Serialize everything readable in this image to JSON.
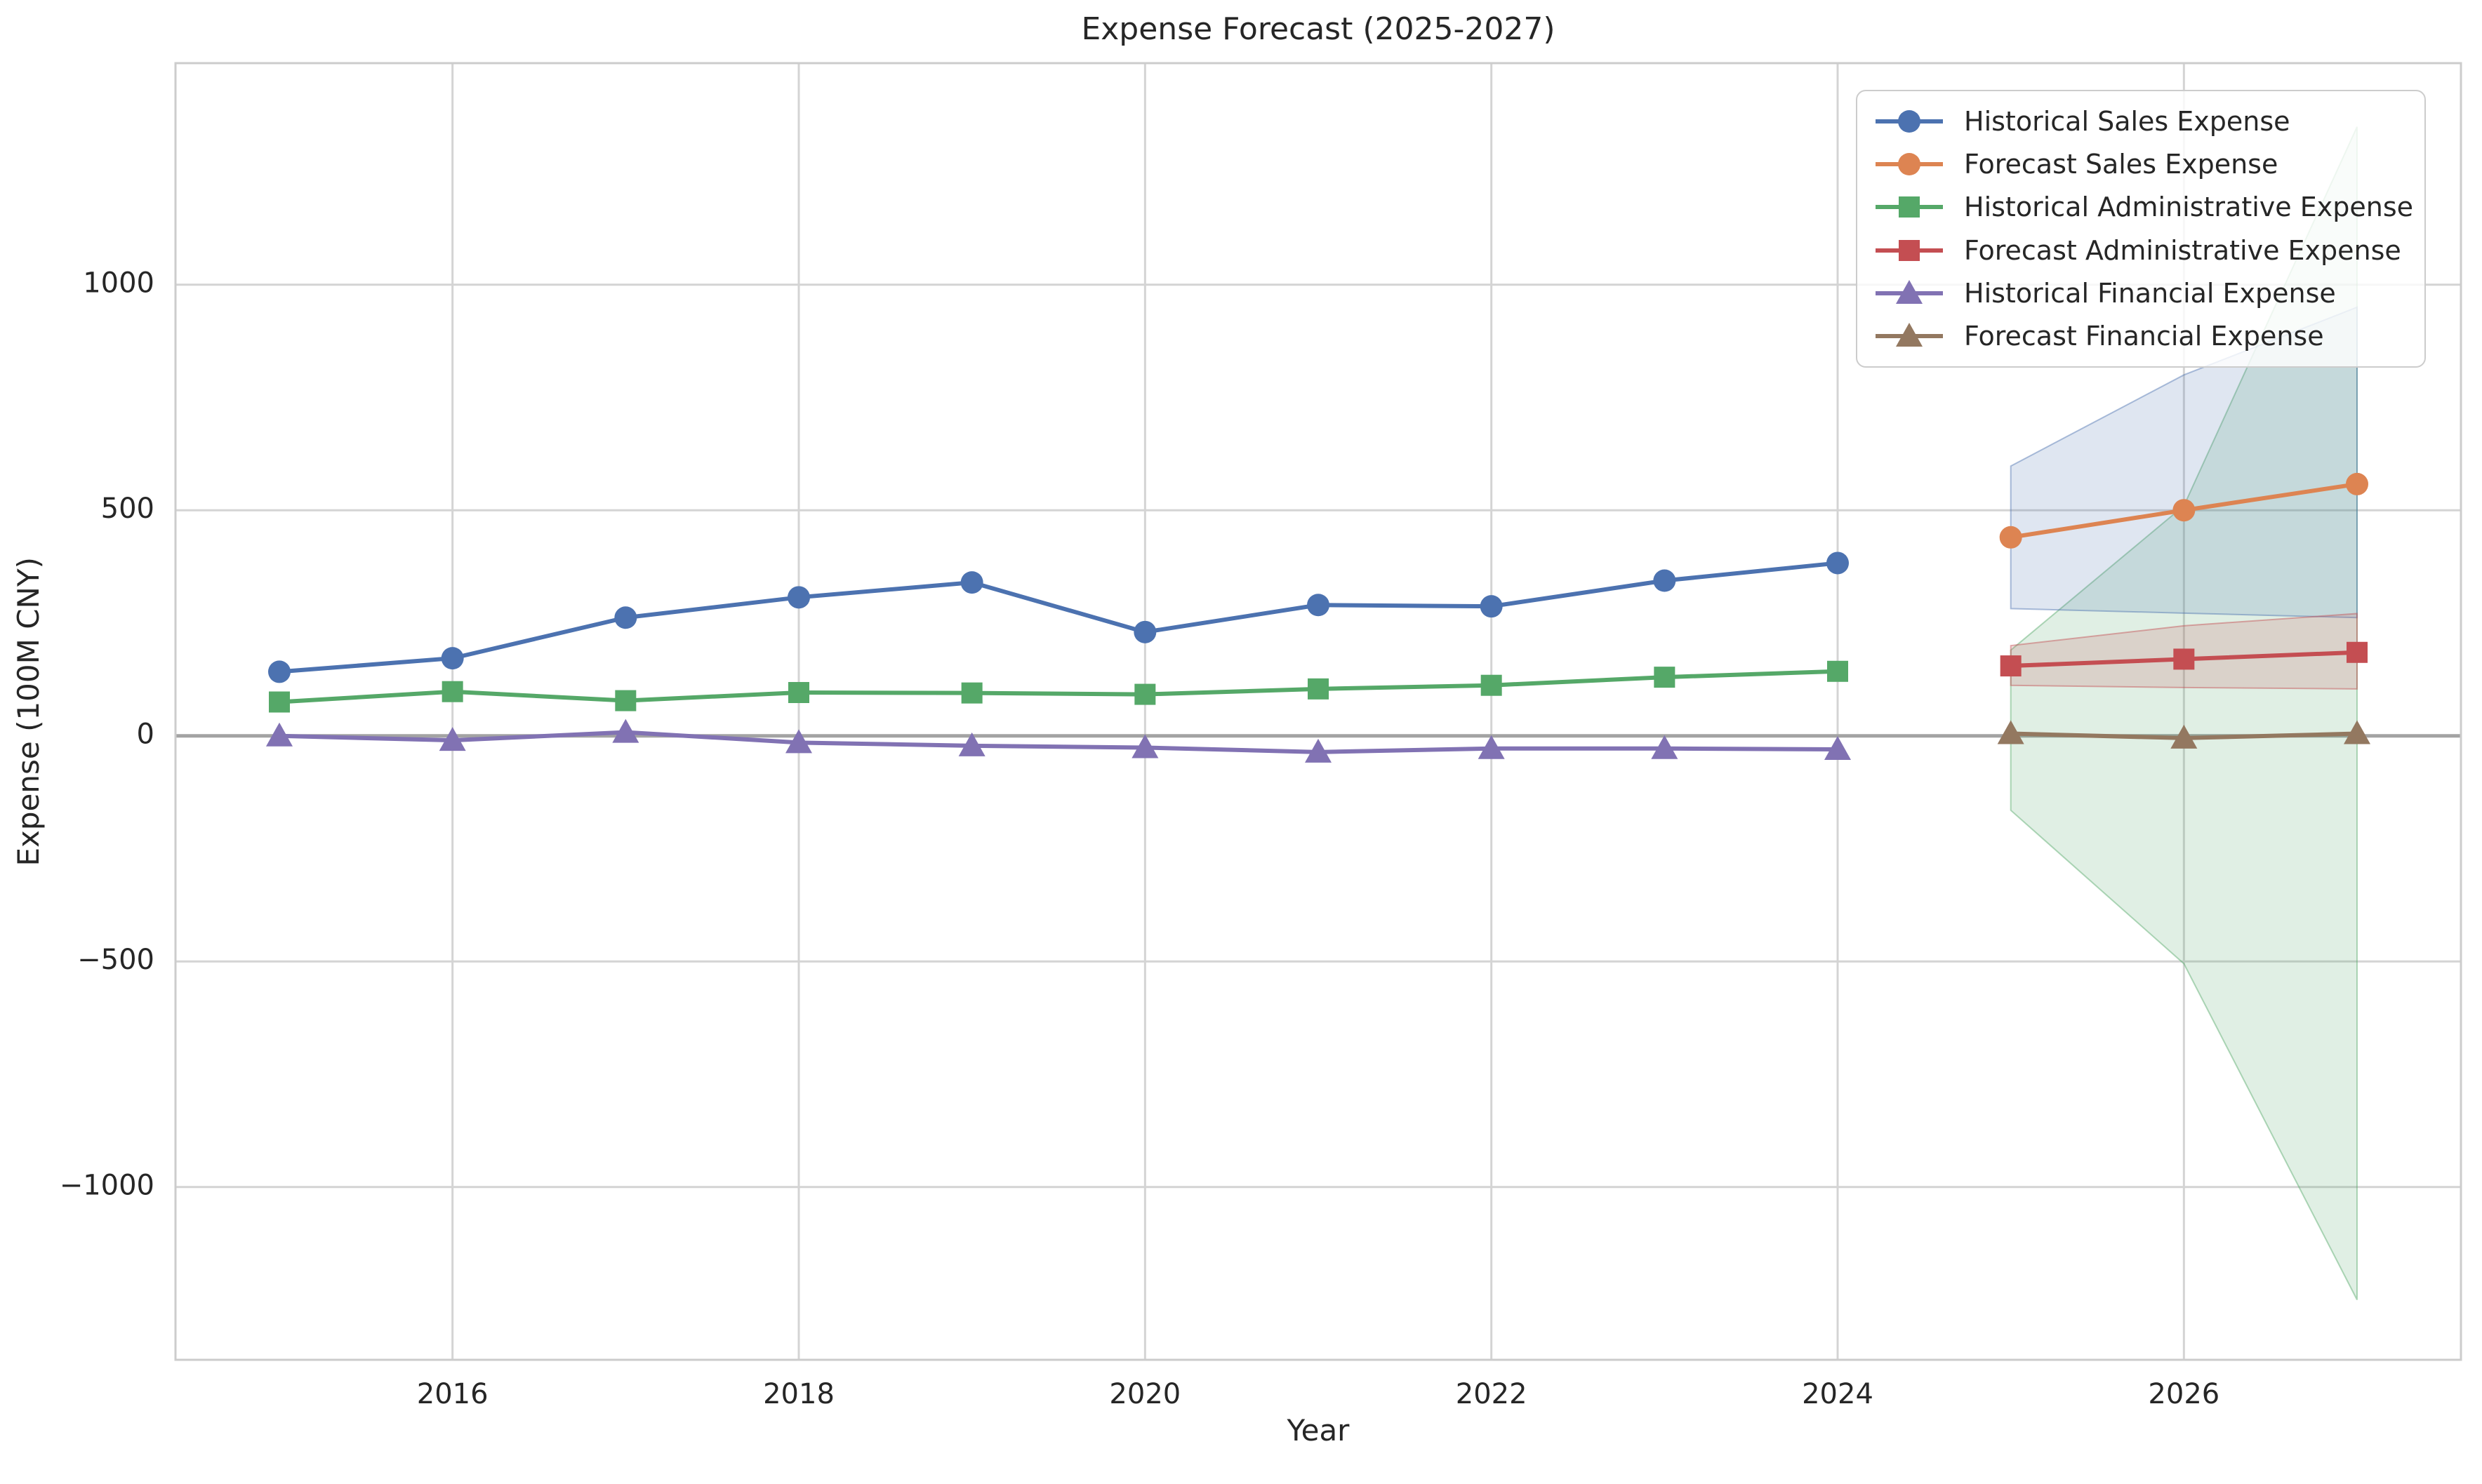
{
  "title": "Expense Forecast (2025-2027)",
  "chart_data": {
    "type": "line",
    "title": "Expense Forecast (2025-2027)",
    "xlabel": "Year",
    "ylabel": "Expense (100M CNY)",
    "grid": true,
    "background": "#ffffff",
    "legend_position": "upper right",
    "xlim": [
      2014.4,
      2027.6
    ],
    "ylim": [
      -1383,
      1491
    ],
    "x_ticks": [
      2016,
      2018,
      2020,
      2022,
      2024,
      2026
    ],
    "y_ticks": [
      1000,
      500,
      0,
      -500,
      -1000
    ],
    "style": {
      "grid_color": "#d4d4d4",
      "zero_line_color": "#a3a3a3",
      "spine_color": "#cccccc",
      "text_color": "#262626",
      "band_alpha": 0.18
    },
    "series": [
      {
        "name": "Historical Sales Expense",
        "color": "#4C72B0",
        "marker": "circle",
        "x": [
          2015,
          2016,
          2017,
          2018,
          2019,
          2020,
          2021,
          2022,
          2023,
          2024
        ],
        "values": [
          142,
          172,
          262,
          307,
          340,
          230,
          290,
          287,
          344,
          383
        ]
      },
      {
        "name": "Forecast Sales Expense",
        "color": "#DD8452",
        "marker": "circle",
        "x": [
          2025,
          2026,
          2027
        ],
        "values": [
          440,
          500,
          558
        ],
        "band": {
          "color": "#4C72B0",
          "lower": [
            282,
            272,
            262
          ],
          "upper": [
            598,
            800,
            950
          ]
        }
      },
      {
        "name": "Historical Administrative Expense",
        "color": "#55A868",
        "marker": "square",
        "x": [
          2015,
          2016,
          2017,
          2018,
          2019,
          2020,
          2021,
          2022,
          2023,
          2024
        ],
        "values": [
          75,
          98,
          78,
          96,
          95,
          92,
          104,
          112,
          130,
          143
        ]
      },
      {
        "name": "Forecast Administrative Expense",
        "color": "#C44E52",
        "marker": "square",
        "x": [
          2025,
          2026,
          2027
        ],
        "values": [
          155,
          170,
          185
        ],
        "band": {
          "color": "#C44E52",
          "lower": [
            112,
            107,
            104
          ],
          "upper": [
            200,
            244,
            271
          ]
        }
      },
      {
        "name": "Historical Financial Expense",
        "color": "#8172B3",
        "marker": "triangle",
        "x": [
          2015,
          2016,
          2017,
          2018,
          2019,
          2020,
          2021,
          2022,
          2023,
          2024
        ],
        "values": [
          0,
          -10,
          8,
          -15,
          -22,
          -26,
          -36,
          -28,
          -28,
          -30
        ]
      },
      {
        "name": "Forecast Financial Expense",
        "color": "#937860",
        "marker": "triangle",
        "x": [
          2025,
          2026,
          2027
        ],
        "values": [
          5,
          -5,
          5
        ],
        "band": {
          "color": "#55A868",
          "lower": [
            -165,
            -505,
            -1250
          ],
          "upper": [
            190,
            510,
            1350
          ]
        }
      }
    ]
  }
}
